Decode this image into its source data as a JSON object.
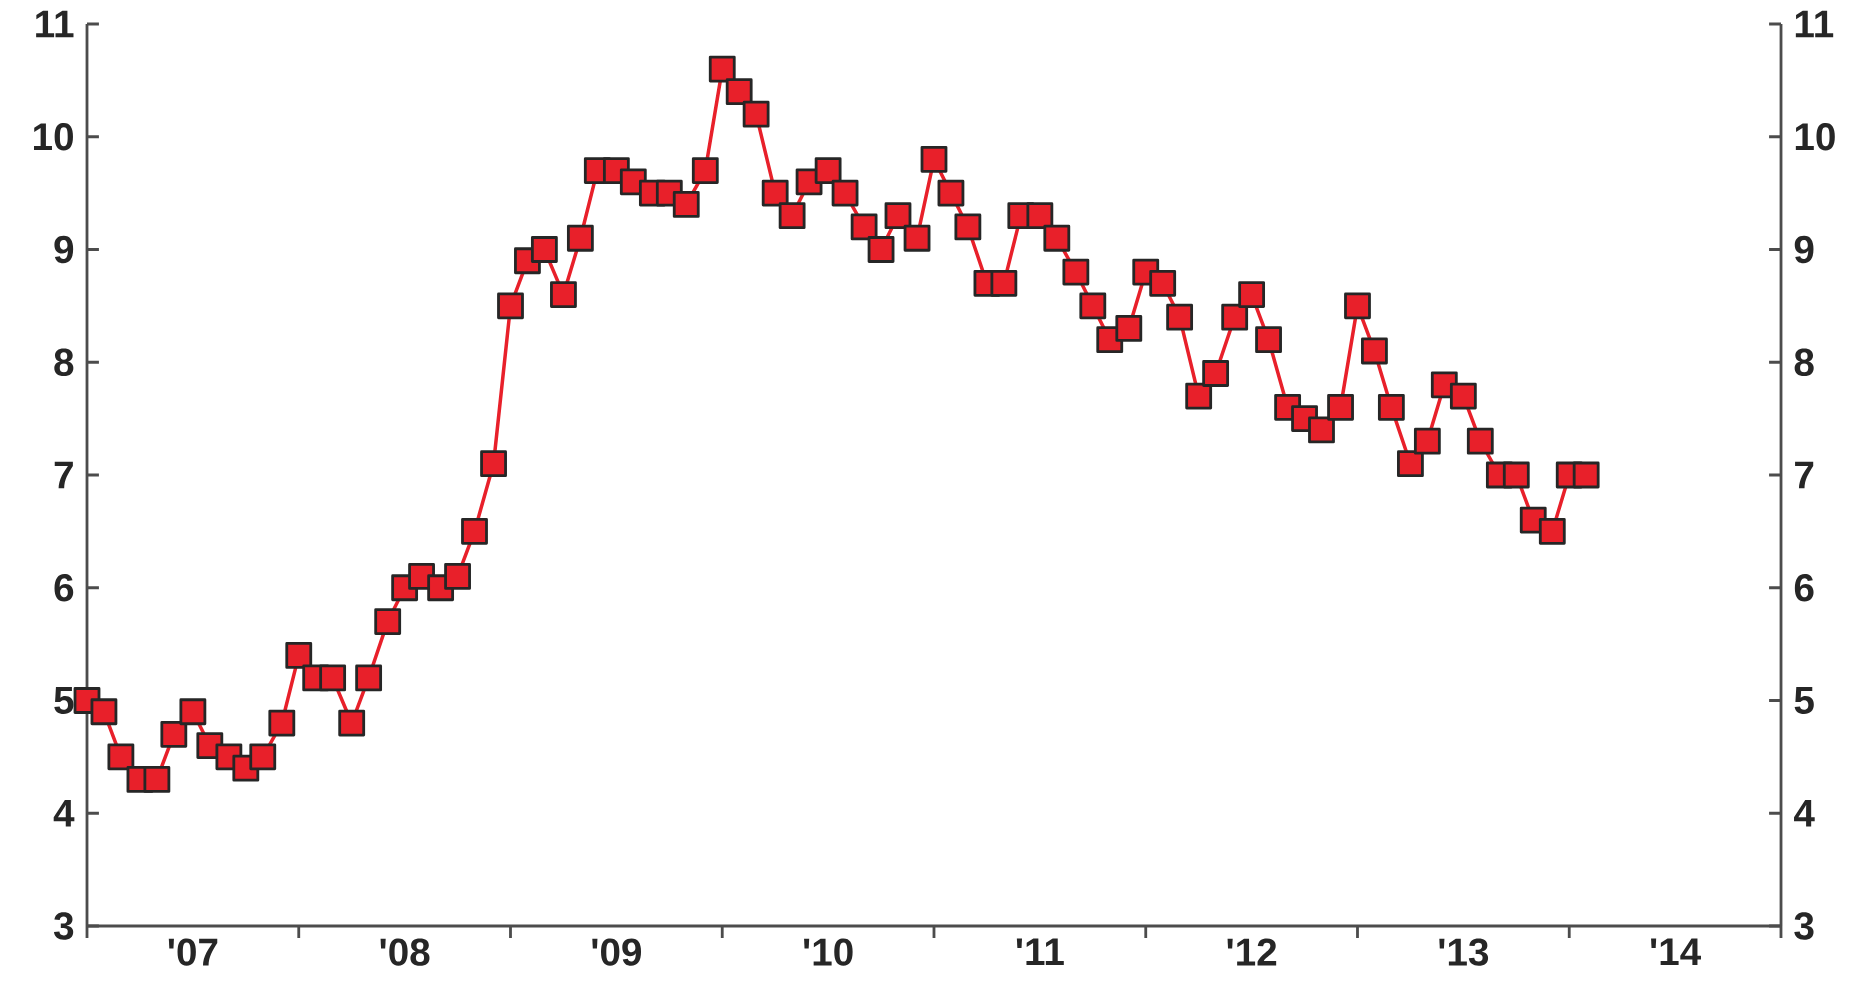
{
  "chart_data": {
    "type": "line",
    "marker": "square",
    "line_style": "solid",
    "grid": false,
    "x": [
      "2007-01",
      "2007-02",
      "2007-03",
      "2007-04",
      "2007-05",
      "2007-06",
      "2007-07",
      "2007-08",
      "2007-09",
      "2007-10",
      "2007-11",
      "2007-12",
      "2008-01",
      "2008-02",
      "2008-03",
      "2008-04",
      "2008-05",
      "2008-06",
      "2008-07",
      "2008-08",
      "2008-09",
      "2008-10",
      "2008-11",
      "2008-12",
      "2009-01",
      "2009-02",
      "2009-03",
      "2009-04",
      "2009-05",
      "2009-06",
      "2009-07",
      "2009-08",
      "2009-09",
      "2009-10",
      "2009-11",
      "2009-12",
      "2010-01",
      "2010-02",
      "2010-03",
      "2010-04",
      "2010-05",
      "2010-06",
      "2010-07",
      "2010-08",
      "2010-09",
      "2010-10",
      "2010-11",
      "2010-12",
      "2011-01",
      "2011-02",
      "2011-03",
      "2011-04",
      "2011-05",
      "2011-06",
      "2011-07",
      "2011-08",
      "2011-09",
      "2011-10",
      "2011-11",
      "2011-12",
      "2012-01",
      "2012-02",
      "2012-03",
      "2012-04",
      "2012-05",
      "2012-06",
      "2012-07",
      "2012-08",
      "2012-09",
      "2012-10",
      "2012-11",
      "2012-12",
      "2013-01",
      "2013-02",
      "2013-03",
      "2013-04",
      "2013-05",
      "2013-06",
      "2013-07",
      "2013-08",
      "2013-09",
      "2013-10",
      "2013-11",
      "2013-12",
      "2014-01",
      "2014-02"
    ],
    "series": [
      {
        "color": "#e8202a",
        "values": [
          5.0,
          4.9,
          4.5,
          4.3,
          4.3,
          4.7,
          4.9,
          4.6,
          4.5,
          4.4,
          4.5,
          4.8,
          5.4,
          5.2,
          5.2,
          4.8,
          5.2,
          5.7,
          6.0,
          6.1,
          6.0,
          6.1,
          6.5,
          7.1,
          8.5,
          8.9,
          9.0,
          8.6,
          9.1,
          9.7,
          9.7,
          9.6,
          9.5,
          9.5,
          9.4,
          9.7,
          10.6,
          10.4,
          10.2,
          9.5,
          9.3,
          9.6,
          9.7,
          9.5,
          9.2,
          9.0,
          9.3,
          9.1,
          9.8,
          9.5,
          9.2,
          8.7,
          8.7,
          9.3,
          9.3,
          9.1,
          8.8,
          8.5,
          8.2,
          8.3,
          8.8,
          8.7,
          8.4,
          7.7,
          7.9,
          8.4,
          8.6,
          8.2,
          7.6,
          7.5,
          7.4,
          7.6,
          8.5,
          8.1,
          7.6,
          7.1,
          7.3,
          7.8,
          7.7,
          7.3,
          7.0,
          7.0,
          6.6,
          6.5,
          7.0,
          7.0
        ]
      }
    ],
    "xlim": [
      "2007-01-01",
      "2015-01-01"
    ],
    "xticks": [
      {
        "value": "2007-01-01",
        "label": null
      },
      {
        "value": "2008-01-01",
        "label": null
      },
      {
        "value": "2009-01-01",
        "label": null
      },
      {
        "value": "2010-01-01",
        "label": null
      },
      {
        "value": "2011-01-01",
        "label": null
      },
      {
        "value": "2012-01-01",
        "label": null
      },
      {
        "value": "2013-01-01",
        "label": null
      },
      {
        "value": "2014-01-01",
        "label": null
      },
      {
        "value": "2015-01-01",
        "label": null
      },
      {
        "value": "2007-07-02",
        "label": "'07"
      },
      {
        "value": "2008-07-02",
        "label": "'08"
      },
      {
        "value": "2009-07-02",
        "label": "'09"
      },
      {
        "value": "2010-07-02",
        "label": "'10"
      },
      {
        "value": "2011-07-02",
        "label": "'11"
      },
      {
        "value": "2012-07-02",
        "label": "'12"
      },
      {
        "value": "2013-07-02",
        "label": "'13"
      },
      {
        "value": "2014-07-02",
        "label": "'14"
      }
    ],
    "ylim": [
      3,
      11
    ],
    "yticks": [
      3,
      4,
      5,
      6,
      7,
      8,
      9,
      10,
      11
    ],
    "y2lim": [
      3,
      11
    ],
    "y2ticks": [
      3,
      4,
      5,
      6,
      7,
      8,
      9,
      10,
      11
    ]
  }
}
